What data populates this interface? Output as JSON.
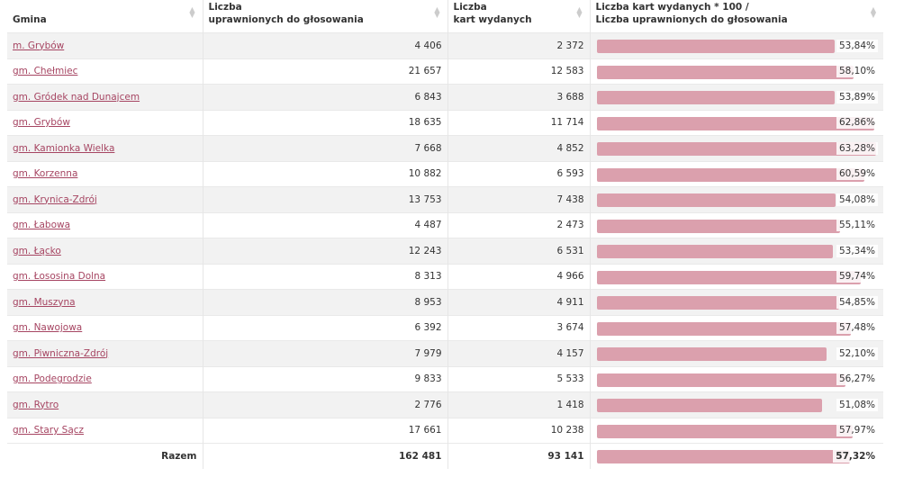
{
  "headers": [
    {
      "line1": "",
      "line2": "Gmina"
    },
    {
      "line1": "Liczba",
      "line2": "uprawnionych do głosowania"
    },
    {
      "line1": "Liczba",
      "line2": "kart wydanych"
    },
    {
      "line1": "Liczba kart wydanych * 100 /",
      "line2": "Liczba uprawnionych do głosowania"
    }
  ],
  "sort_icon": "sort-icon",
  "bar_color": "#dba0ad",
  "bar_scale_max": 63.5,
  "rows": [
    {
      "name": "m. Grybów",
      "eligible": "4 406",
      "issued": "2 372",
      "pct": "53,84%",
      "value": 53.84
    },
    {
      "name": "gm. Chełmiec",
      "eligible": "21 657",
      "issued": "12 583",
      "pct": "58,10%",
      "value": 58.1
    },
    {
      "name": "gm. Gródek nad Dunajcem",
      "eligible": "6 843",
      "issued": "3 688",
      "pct": "53,89%",
      "value": 53.89
    },
    {
      "name": "gm. Grybów",
      "eligible": "18 635",
      "issued": "11 714",
      "pct": "62,86%",
      "value": 62.86
    },
    {
      "name": "gm. Kamionka Wielka",
      "eligible": "7 668",
      "issued": "4 852",
      "pct": "63,28%",
      "value": 63.28
    },
    {
      "name": "gm. Korzenna",
      "eligible": "10 882",
      "issued": "6 593",
      "pct": "60,59%",
      "value": 60.59
    },
    {
      "name": "gm. Krynica-Zdrój",
      "eligible": "13 753",
      "issued": "7 438",
      "pct": "54,08%",
      "value": 54.08
    },
    {
      "name": "gm. Łabowa",
      "eligible": "4 487",
      "issued": "2 473",
      "pct": "55,11%",
      "value": 55.11
    },
    {
      "name": "gm. Łącko",
      "eligible": "12 243",
      "issued": "6 531",
      "pct": "53,34%",
      "value": 53.34
    },
    {
      "name": "gm. Łososina Dolna",
      "eligible": "8 313",
      "issued": "4 966",
      "pct": "59,74%",
      "value": 59.74
    },
    {
      "name": "gm. Muszyna",
      "eligible": "8 953",
      "issued": "4 911",
      "pct": "54,85%",
      "value": 54.85
    },
    {
      "name": "gm. Nawojowa",
      "eligible": "6 392",
      "issued": "3 674",
      "pct": "57,48%",
      "value": 57.48
    },
    {
      "name": "gm. Piwniczna-Zdrój",
      "eligible": "7 979",
      "issued": "4 157",
      "pct": "52,10%",
      "value": 52.1
    },
    {
      "name": "gm. Podegrodzie",
      "eligible": "9 833",
      "issued": "5 533",
      "pct": "56,27%",
      "value": 56.27
    },
    {
      "name": "gm. Rytro",
      "eligible": "2 776",
      "issued": "1 418",
      "pct": "51,08%",
      "value": 51.08
    },
    {
      "name": "gm. Stary Sącz",
      "eligible": "17 661",
      "issued": "10 238",
      "pct": "57,97%",
      "value": 57.97
    }
  ],
  "total": {
    "label": "Razem",
    "eligible": "162 481",
    "issued": "93 141",
    "pct": "57,32%",
    "value": 57.32
  }
}
